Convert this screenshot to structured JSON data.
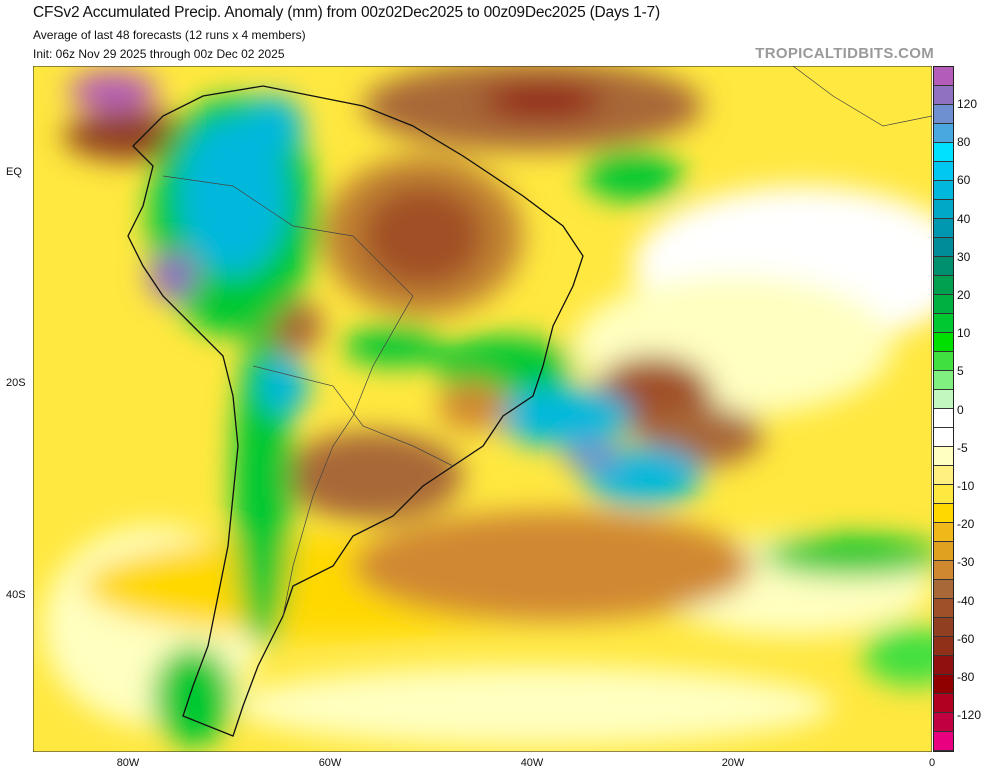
{
  "header": {
    "title": "CFSv2 Accumulated Precip. Anomaly (mm) from 00z02Dec2025 to 00z09Dec2025 (Days 1-7)",
    "subtitle": "Average of last 48 forecasts (12 runs x 4 members)",
    "init": "Init: 06z Nov 29 2025 through 00z Dec 02 2025",
    "brand": "TROPICALTIDBITS.COM"
  },
  "map": {
    "region": "South America",
    "lat_labels": [
      "EQ",
      "20S",
      "40S"
    ],
    "lon_labels": [
      "80W",
      "60W",
      "40W",
      "20W",
      "0"
    ]
  },
  "colorbar": {
    "colors": [
      "#b35cb8",
      "#9070c0",
      "#6e8fd0",
      "#4aa8e0",
      "#00e0ff",
      "#00c8f0",
      "#00b8dc",
      "#00a8c8",
      "#0098b0",
      "#008c98",
      "#009070",
      "#00a050",
      "#00b040",
      "#00c830",
      "#00e000",
      "#40e040",
      "#80f080",
      "#c0f8c0",
      "#ffffff",
      "#ffffff",
      "#ffffc0",
      "#fff080",
      "#ffe840",
      "#ffd800",
      "#f0b818",
      "#e0a020",
      "#d08830",
      "#a86838",
      "#a05028",
      "#904020",
      "#903018",
      "#901010",
      "#900000",
      "#b00020",
      "#c00040",
      "#e80080"
    ],
    "labels": [
      "120",
      "80",
      "60",
      "40",
      "30",
      "20",
      "10",
      "5",
      "0",
      "-5",
      "-10",
      "-20",
      "-30",
      "-40",
      "-60",
      "-80",
      "-120"
    ]
  }
}
